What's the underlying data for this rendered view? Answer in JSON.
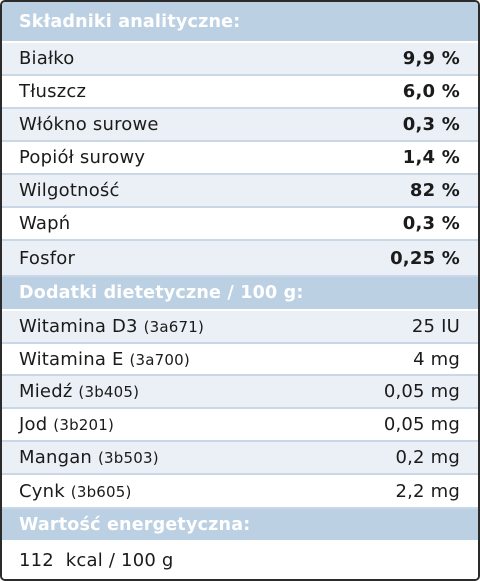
{
  "sections": {
    "analytical": {
      "title": "Składniki analityczne:",
      "rows": [
        {
          "label": "Białko",
          "value": "9,9 %"
        },
        {
          "label": "Tłuszcz",
          "value": "6,0 %"
        },
        {
          "label": "Włókno surowe",
          "value": "0,3 %"
        },
        {
          "label": "Popiół surowy",
          "value": "1,4 %"
        },
        {
          "label": "Wilgotność",
          "value": "82 %"
        },
        {
          "label": "Wapń",
          "value": "0,3 %"
        },
        {
          "label": "Fosfor",
          "value": "0,25 %"
        }
      ]
    },
    "additives": {
      "title": "Dodatki dietetyczne / 100 g:",
      "rows": [
        {
          "label": "Witamina D3",
          "code": "(3a671)",
          "value": "25 IU"
        },
        {
          "label": "Witamina E",
          "code": "(3a700)",
          "value": "4 mg"
        },
        {
          "label": "Miedź",
          "code": "(3b405)",
          "value": "0,05 mg"
        },
        {
          "label": "Jod",
          "code": "(3b201)",
          "value": "0,05 mg"
        },
        {
          "label": "Mangan",
          "code": "(3b503)",
          "value": "0,2 mg"
        },
        {
          "label": "Cynk",
          "code": "(3b605)",
          "value": "2,2 mg"
        }
      ]
    },
    "energy": {
      "title": "Wartość energetyczna:",
      "value": "112  kcal / 100 g"
    }
  },
  "colors": {
    "header_bg": "#bcd0e3",
    "alt_row_bg": "#eaf0f6",
    "border": "#2b2b2b"
  }
}
